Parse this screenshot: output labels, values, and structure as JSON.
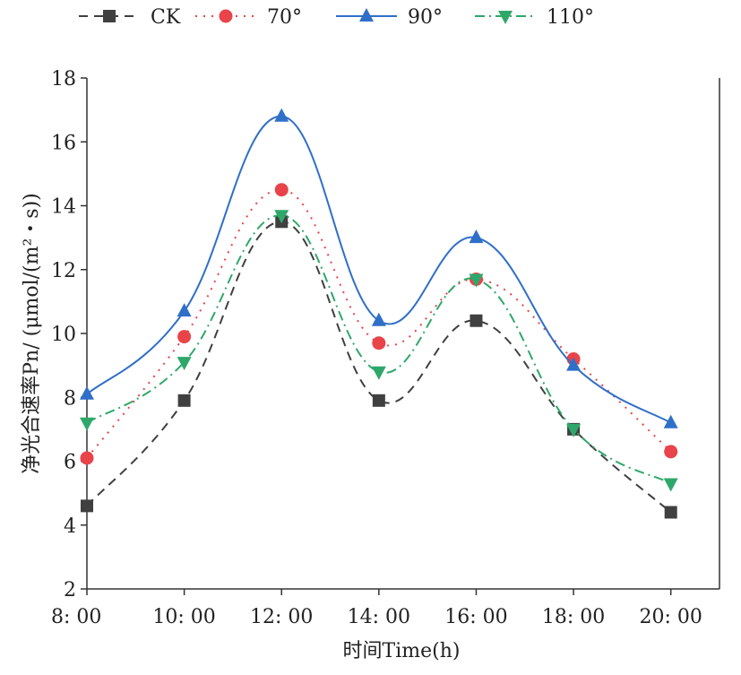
{
  "chart_data": {
    "type": "line",
    "categories": [
      "8: 00",
      "10: 00",
      "12: 00",
      "14: 00",
      "16: 00",
      "18: 00",
      "20: 00"
    ],
    "xlabel": "时间Time(h)",
    "ylabel": "净光合速率Pn/ (μmol/(m²・s))",
    "ylim": [
      2,
      18
    ],
    "yticks": [
      2,
      4,
      6,
      8,
      10,
      12,
      14,
      16,
      18
    ],
    "grid": false,
    "legend_position": "top",
    "series": [
      {
        "name": "CK",
        "values": [
          4.6,
          7.9,
          13.5,
          7.9,
          10.4,
          7.0,
          4.4
        ],
        "color": "#404040",
        "marker": "square",
        "line": "dashed"
      },
      {
        "name": "70°",
        "values": [
          6.1,
          9.9,
          14.5,
          9.7,
          11.7,
          9.2,
          6.3
        ],
        "color": "#e8444a",
        "marker": "circle",
        "line": "dotted"
      },
      {
        "name": "90°",
        "values": [
          8.1,
          10.7,
          16.8,
          10.4,
          13.0,
          9.0,
          7.2
        ],
        "color": "#2f6fc8",
        "marker": "triangle-up",
        "line": "solid"
      },
      {
        "name": "110°",
        "values": [
          7.2,
          9.1,
          13.7,
          8.8,
          11.7,
          7.0,
          5.3
        ],
        "color": "#2ea86a",
        "marker": "triangle-down",
        "line": "dashdot"
      }
    ]
  }
}
